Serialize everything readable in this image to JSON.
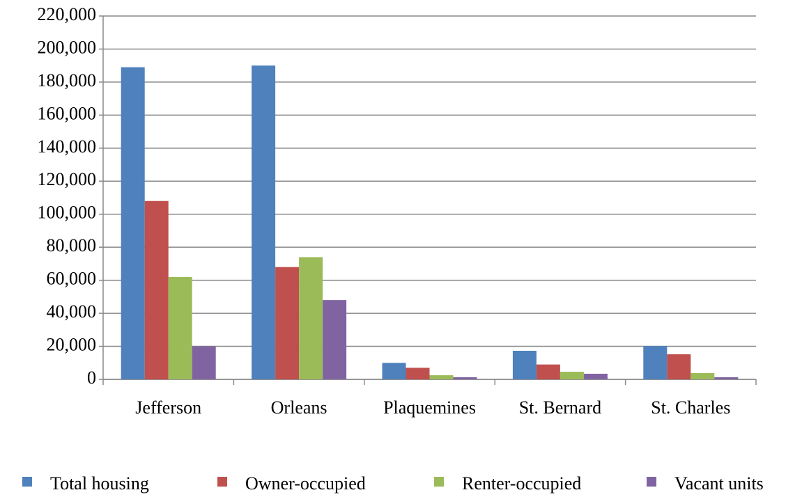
{
  "chart_data": {
    "type": "bar",
    "categories": [
      "Jefferson",
      "Orleans",
      "Plaquemines",
      "St. Bernard",
      "St. Charles"
    ],
    "series": [
      {
        "name": "Total housing",
        "color": "#4f81bd",
        "values": [
          189000,
          190000,
          10000,
          17300,
          20200
        ]
      },
      {
        "name": "Owner-occupied",
        "color": "#c0504d",
        "values": [
          108000,
          68000,
          7000,
          9000,
          15200
        ]
      },
      {
        "name": "Renter-occupied",
        "color": "#9bbb59",
        "values": [
          62000,
          74000,
          2500,
          4600,
          3800
        ]
      },
      {
        "name": "Vacant units",
        "color": "#8064a2",
        "values": [
          20000,
          48000,
          1300,
          3400,
          1300
        ]
      }
    ],
    "ylim": [
      0,
      220000
    ],
    "yticks": [
      0,
      {
        "value": 20000,
        "label": "20,000"
      },
      {
        "value": 40000,
        "label": "40,000"
      },
      {
        "value": 60000,
        "label": "60,000"
      },
      {
        "value": 80000,
        "label": "80,000"
      },
      {
        "value": 100000,
        "label": "100,000"
      },
      {
        "value": 120000,
        "label": "120,000"
      },
      {
        "value": 140000,
        "label": "140,000"
      },
      {
        "value": 160000,
        "label": "160,000"
      },
      {
        "value": 180000,
        "label": "180,000"
      },
      {
        "value": 200000,
        "label": "200,000"
      },
      {
        "value": 220000,
        "label": "220,000"
      }
    ],
    "grid": true,
    "legend": "bottom"
  }
}
